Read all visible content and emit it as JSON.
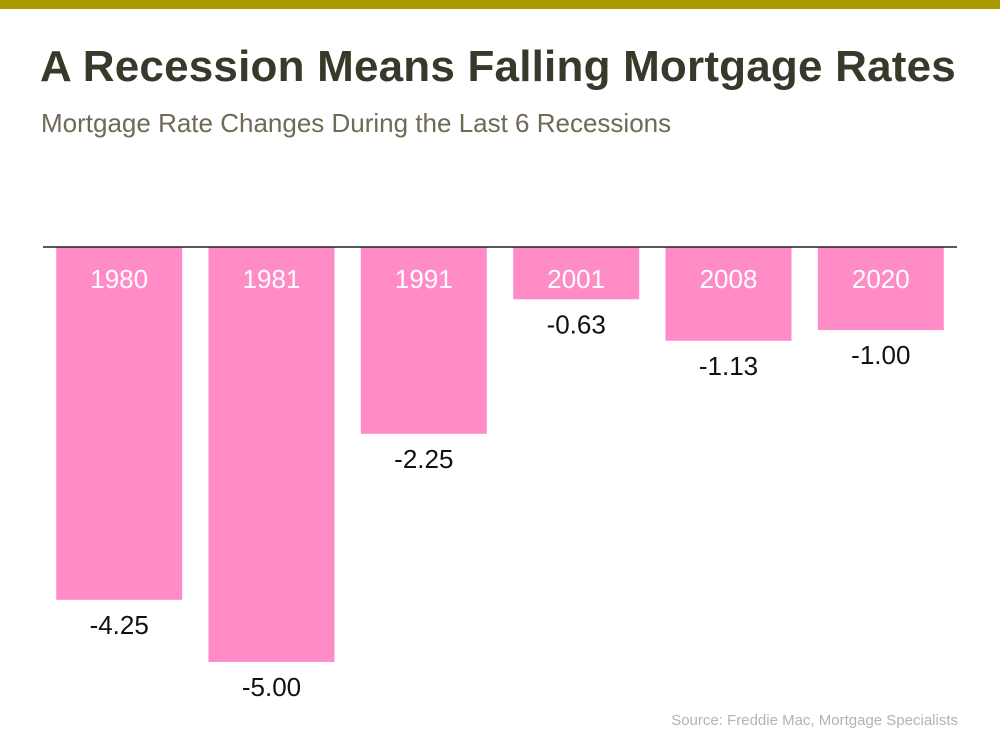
{
  "header": {
    "title": "A Recession Means Falling Mortgage Rates",
    "subtitle": "Mortgage Rate Changes During the Last 6 Recessions"
  },
  "footer": {
    "source": "Source: Freddie Mac, Mortgage Specialists"
  },
  "colors": {
    "top_bar": "#aa9a00",
    "bar": "#ff8cc6",
    "baseline": "#222222",
    "category_label": "#ffffff",
    "value_label": "#111111"
  },
  "chart_data": {
    "type": "bar",
    "orientation": "vertical",
    "categories": [
      "1980",
      "1981",
      "1991",
      "2001",
      "2008",
      "2020"
    ],
    "values": [
      -4.25,
      -5.0,
      -2.25,
      -0.63,
      -1.13,
      -1.0
    ],
    "value_labels": [
      "-4.25",
      "-5.00",
      "-2.25",
      "-0.63",
      "-1.13",
      "-1.00"
    ],
    "title": "A Recession Means Falling Mortgage Rates",
    "subtitle": "Mortgage Rate Changes During the Last 6 Recessions",
    "xlabel": "",
    "ylabel": "",
    "ylim": [
      -5.0,
      0
    ],
    "grid": false,
    "legend": "none",
    "category_label_position": "inside-top-of-bar",
    "value_label_position": "below-bar-end"
  }
}
